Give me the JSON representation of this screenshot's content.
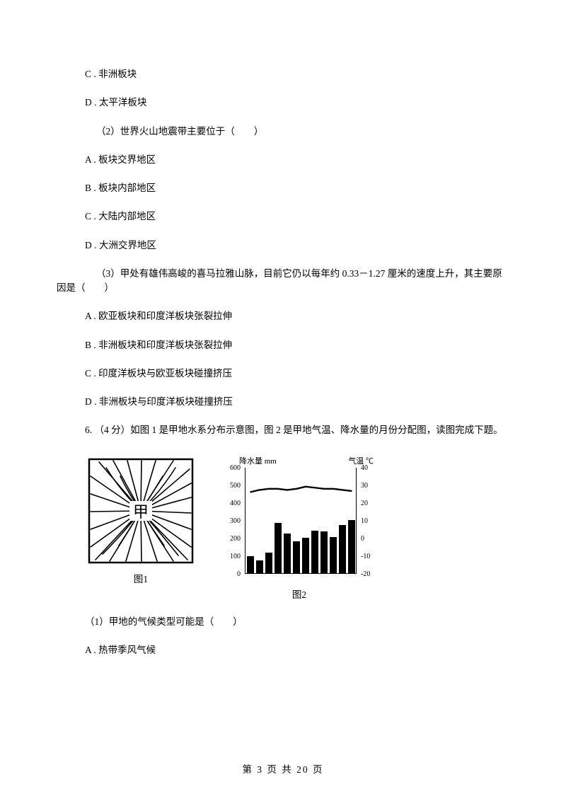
{
  "q_prev": {
    "opt_c": "C .  非洲板块",
    "opt_d": "D .  太平洋板块"
  },
  "q2": {
    "stem": "（2）世界火山地震带主要位于（　　）",
    "opt_a": "A .  板块交界地区",
    "opt_b": "B .  板块内部地区",
    "opt_c": "C .  大陆内部地区",
    "opt_d": "D .  大洲交界地区"
  },
  "q3": {
    "stem": "（3）甲处有雄伟高峻的喜马拉雅山脉，目前它仍以每年约 0.33－1.27 厘米的速度上升，其主要原因是（　　）",
    "opt_a": "A .  欧亚板块和印度洋板块张裂拉伸",
    "opt_b": "B .  非洲板块和印度洋板块张裂拉伸",
    "opt_c": "C .  印度洋板块与欧亚板块碰撞挤压",
    "opt_d": "D .  非洲板块与印度洋板块碰撞挤压"
  },
  "q6": {
    "stem": "6.  （4 分）如图 1 是甲地水系分布示意图，图 2 是甲地气温、降水量的月份分配图，读图完成下题。",
    "sub1": "（1）甲地的气候类型可能是（　　）",
    "opt_a": "A .  热带季风气候"
  },
  "figure": {
    "img1_center_char": "甲",
    "img1_caption": "图1",
    "img2_caption": "图2",
    "left_axis_label": "降水量   mm",
    "right_axis_label": "气温 ℃",
    "left_ticks": [
      "600",
      "500",
      "400",
      "300",
      "200",
      "100",
      "0"
    ],
    "right_ticks": [
      "40",
      "30",
      "20",
      "10",
      "0",
      "-10",
      "-20"
    ],
    "bar_heights_pct": [
      16,
      12,
      19,
      47,
      37,
      30,
      33,
      40,
      39,
      34,
      45,
      50
    ],
    "temp_points_pct": [
      22,
      20,
      19,
      19,
      20,
      19,
      17,
      18,
      19,
      19,
      20,
      21
    ],
    "bar_color": "#000000",
    "line_color": "#000000"
  },
  "footer": {
    "text": "第  3  页  共  20  页"
  }
}
